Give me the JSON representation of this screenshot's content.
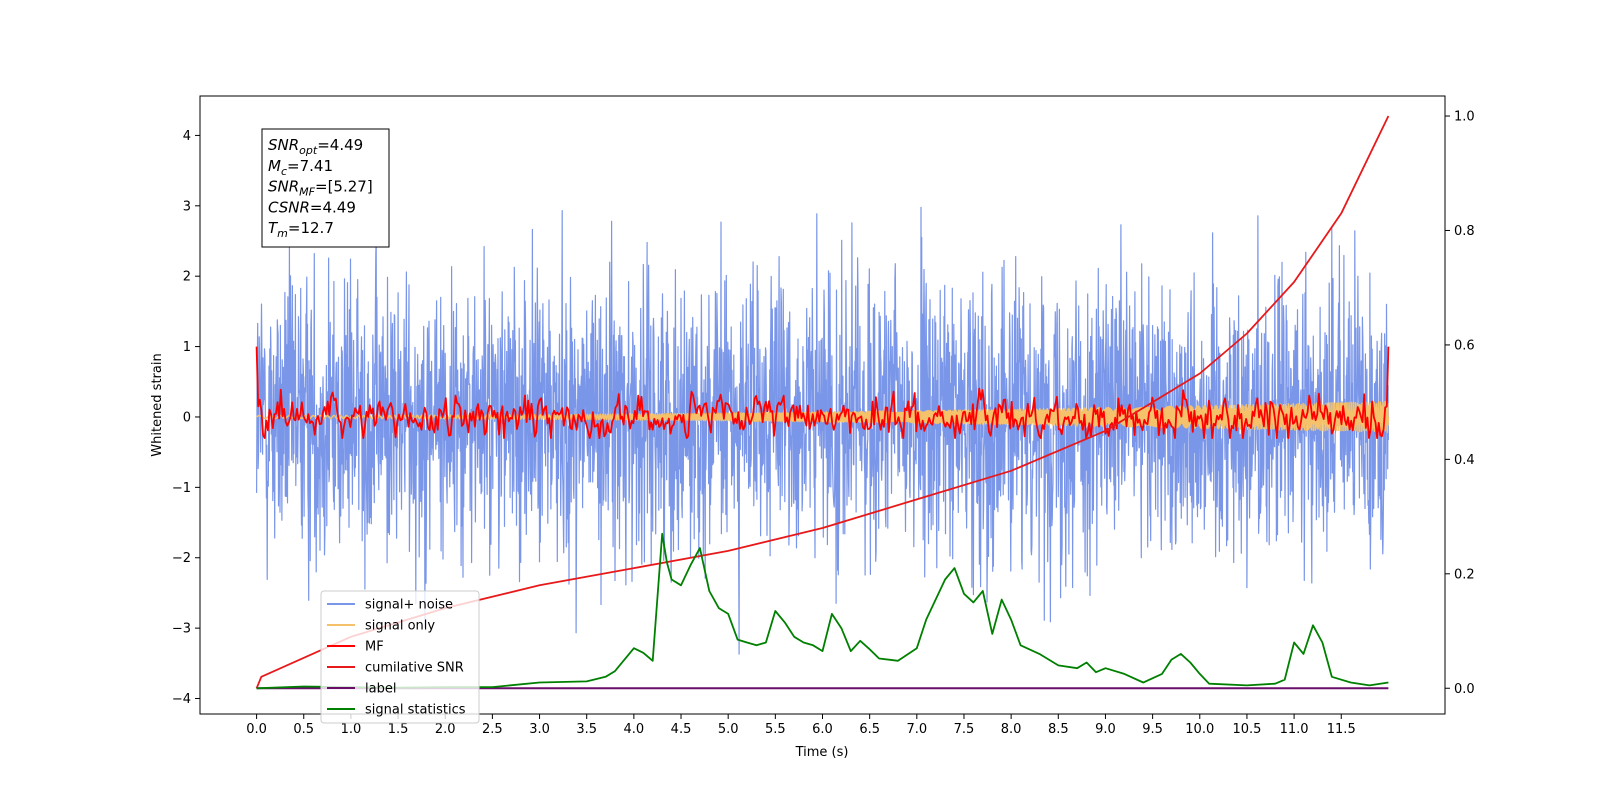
{
  "chart_data": {
    "type": "line",
    "xlabel": "Time (s)",
    "ylabel": "Whitened strain",
    "xlim": [
      -0.6,
      12.6
    ],
    "ylim": [
      -4.22,
      4.56
    ],
    "y2lim": [
      -0.045,
      1.035
    ],
    "xticks": [
      0.0,
      0.5,
      1.0,
      1.5,
      2.0,
      2.5,
      3.0,
      3.5,
      4.0,
      4.5,
      5.0,
      5.5,
      6.0,
      6.5,
      7.0,
      7.5,
      8.0,
      8.5,
      9.0,
      9.5,
      10.0,
      10.5,
      11.0,
      11.5
    ],
    "xtick_labels": [
      "0.0",
      "0.5",
      "1.0",
      "1.5",
      "2.0",
      "2.5",
      "3.0",
      "3.5",
      "4.0",
      "4.5",
      "5.0",
      "5.5",
      "6.0",
      "6.5",
      "7.0",
      "7.5",
      "8.0",
      "8.5",
      "9.0",
      "9.5",
      "10.0",
      "10.5",
      "11.0",
      "11.5"
    ],
    "yticks": [
      -4,
      -3,
      -2,
      -1,
      0,
      1,
      2,
      3,
      4
    ],
    "ytick_labels": [
      "−4",
      "−3",
      "−2",
      "−1",
      "0",
      "1",
      "2",
      "3",
      "4"
    ],
    "y2ticks": [
      0.0,
      0.2,
      0.4,
      0.6,
      0.8,
      1.0
    ],
    "y2tick_labels": [
      "0.0",
      "0.2",
      "0.4",
      "0.6",
      "0.8",
      "1.0"
    ],
    "t_range": [
      0.0,
      12.0
    ],
    "series": [
      {
        "name": "signal+ noise",
        "color": "#7a96e8",
        "axis": "left",
        "kind": "noise",
        "amplitude_range": [
          -3.8,
          4.2
        ]
      },
      {
        "name": "signal only",
        "color": "#f5c26b",
        "axis": "left",
        "kind": "chirp",
        "envelope_start": 0.02,
        "envelope_end": 0.22
      },
      {
        "name": "MF",
        "color": "#ff0000",
        "axis": "left",
        "kind": "mf",
        "start_value": 1.0,
        "end_value": 1.0,
        "amplitude_range": [
          -0.3,
          0.55
        ]
      },
      {
        "name": "cumilative SNR",
        "color": "#e8191a",
        "axis": "right",
        "kind": "curve",
        "x": [
          0.0,
          0.05,
          1.0,
          2.0,
          3.0,
          4.0,
          5.0,
          6.0,
          7.0,
          8.0,
          9.0,
          10.0,
          10.5,
          11.0,
          11.5,
          12.0
        ],
        "y": [
          0.0,
          0.02,
          0.09,
          0.14,
          0.18,
          0.21,
          0.24,
          0.28,
          0.33,
          0.38,
          0.45,
          0.55,
          0.62,
          0.71,
          0.83,
          1.0
        ]
      },
      {
        "name": "label",
        "color": "#6a0d6a",
        "axis": "right",
        "kind": "constant",
        "value": 0.0
      },
      {
        "name": "signal statistics",
        "color": "#008000",
        "axis": "right",
        "kind": "curve",
        "x": [
          0.0,
          0.5,
          1.0,
          1.5,
          2.0,
          2.5,
          3.0,
          3.5,
          3.7,
          3.8,
          4.0,
          4.1,
          4.2,
          4.3,
          4.35,
          4.4,
          4.5,
          4.6,
          4.7,
          4.8,
          4.9,
          5.0,
          5.1,
          5.2,
          5.3,
          5.4,
          5.5,
          5.6,
          5.7,
          5.8,
          5.9,
          6.0,
          6.1,
          6.2,
          6.3,
          6.4,
          6.5,
          6.6,
          6.8,
          7.0,
          7.1,
          7.3,
          7.4,
          7.5,
          7.6,
          7.7,
          7.8,
          7.9,
          8.0,
          8.1,
          8.3,
          8.5,
          8.7,
          8.8,
          8.9,
          9.0,
          9.2,
          9.4,
          9.6,
          9.7,
          9.8,
          9.9,
          10.0,
          10.1,
          10.5,
          10.8,
          10.9,
          11.0,
          11.1,
          11.2,
          11.3,
          11.4,
          11.6,
          11.8,
          12.0
        ],
        "y": [
          0.0,
          0.003,
          0.002,
          0.001,
          0.002,
          0.002,
          0.01,
          0.012,
          0.02,
          0.03,
          0.07,
          0.062,
          0.048,
          0.27,
          0.22,
          0.19,
          0.18,
          0.215,
          0.245,
          0.17,
          0.14,
          0.13,
          0.085,
          0.08,
          0.075,
          0.08,
          0.135,
          0.115,
          0.09,
          0.08,
          0.075,
          0.065,
          0.13,
          0.105,
          0.065,
          0.083,
          0.068,
          0.052,
          0.048,
          0.07,
          0.12,
          0.19,
          0.21,
          0.165,
          0.15,
          0.17,
          0.095,
          0.155,
          0.12,
          0.075,
          0.06,
          0.04,
          0.035,
          0.045,
          0.028,
          0.035,
          0.025,
          0.01,
          0.025,
          0.05,
          0.06,
          0.045,
          0.025,
          0.008,
          0.005,
          0.008,
          0.015,
          0.08,
          0.06,
          0.11,
          0.08,
          0.02,
          0.01,
          0.005,
          0.01
        ]
      }
    ],
    "legend": {
      "placement": "lower-left",
      "entries": [
        "signal+ noise",
        "signal only",
        "MF",
        "cumilative SNR",
        "label",
        "signal statistics"
      ]
    },
    "info_box": {
      "placement": "top-left",
      "lines": [
        {
          "base": "SNR",
          "sub": "opt",
          "value": "=4.49"
        },
        {
          "base": "M",
          "sub": "c",
          "value": "=7.41"
        },
        {
          "base": "SNR",
          "sub": "MF",
          "value": "=[5.27]"
        },
        {
          "base": "CSNR",
          "sub": "",
          "value": "=4.49"
        },
        {
          "base": "T",
          "sub": "m",
          "value": "=12.7"
        }
      ]
    },
    "grid": false
  }
}
